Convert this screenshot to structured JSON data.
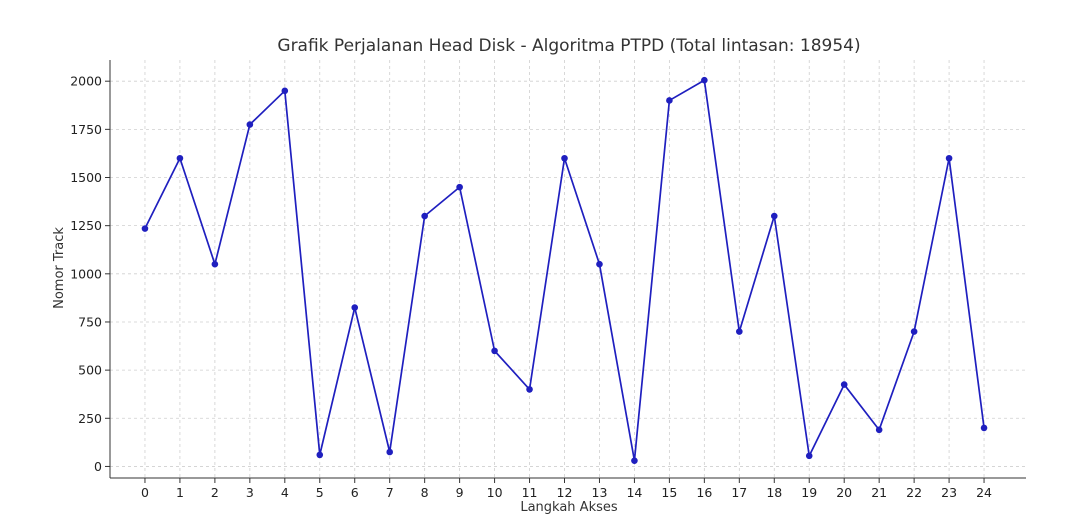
{
  "chart_data": {
    "type": "line",
    "title": "Grafik Perjalanan Head Disk - Algoritma PTPD (Total lintasan: 18954)",
    "xlabel": "Langkah Akses",
    "ylabel": "Nomor Track",
    "x": [
      0,
      1,
      2,
      3,
      4,
      5,
      6,
      7,
      8,
      9,
      10,
      11,
      12,
      13,
      14,
      15,
      16,
      17,
      18,
      19,
      20,
      21,
      22,
      23,
      24
    ],
    "series": [
      {
        "values": [
          1235,
          1600,
          1050,
          1775,
          1950,
          60,
          825,
          75,
          1300,
          1450,
          600,
          400,
          1600,
          1050,
          30,
          1900,
          2005,
          700,
          1300,
          55,
          425,
          190,
          700,
          1600,
          200
        ],
        "color": "#1f1fbf"
      }
    ],
    "xlim": [
      -1,
      25.2
    ],
    "ylim": [
      -60,
      2110
    ],
    "yticks": [
      0,
      250,
      500,
      750,
      1000,
      1250,
      1500,
      1750,
      2000
    ],
    "grid": true,
    "marker": "circle"
  }
}
